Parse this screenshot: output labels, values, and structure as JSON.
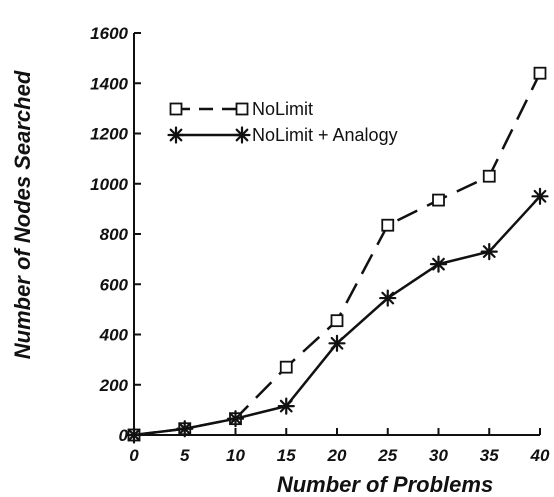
{
  "chart_data": {
    "type": "line",
    "title": "",
    "xlabel": "Number of Problems",
    "ylabel": "Number of Nodes Searched",
    "x": [
      0,
      5,
      10,
      15,
      20,
      25,
      30,
      35,
      40
    ],
    "xticks": [
      "0",
      "5",
      "10",
      "15",
      "20",
      "25",
      "30",
      "35",
      "40"
    ],
    "yticks": [
      "0",
      "200",
      "400",
      "600",
      "800",
      "1000",
      "1200",
      "1400",
      "1600"
    ],
    "xlim": [
      0,
      40
    ],
    "ylim": [
      0,
      1600
    ],
    "grid": false,
    "legend_position": "top-left",
    "series": [
      {
        "name": "NoLimit",
        "values": [
          0,
          25,
          65,
          270,
          455,
          835,
          935,
          1030,
          1440
        ],
        "line_style": "dashed",
        "marker": "square",
        "color": "#111111"
      },
      {
        "name": "NoLimit + Analogy",
        "values": [
          0,
          25,
          65,
          115,
          365,
          545,
          680,
          730,
          950
        ],
        "line_style": "solid",
        "marker": "star",
        "color": "#111111"
      }
    ]
  }
}
